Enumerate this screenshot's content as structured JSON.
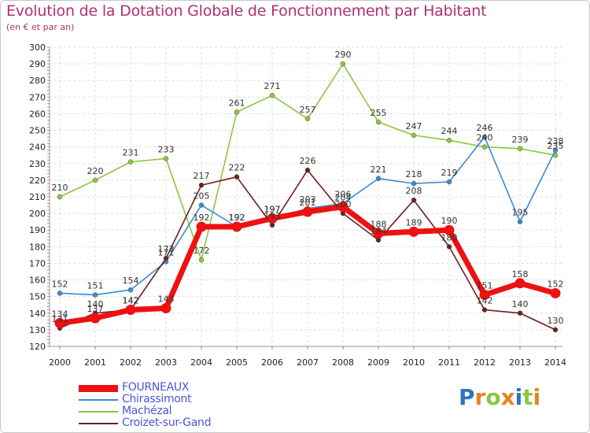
{
  "title": "Evolution de la Dotation Globale de Fonctionnement par Habitant",
  "subtitle": "(en € et par an)",
  "logo": {
    "letters": [
      "P",
      "r",
      "o",
      "x",
      "i",
      "t",
      "i"
    ],
    "colors": [
      "#2c74c0",
      "#e8821e",
      "#8cc63f",
      "#e8821e",
      "#2c74c0",
      "#8cc63f",
      "#e8821e"
    ]
  },
  "chart_data": {
    "type": "line",
    "title": "Evolution de la Dotation Globale de Fonctionnement par Habitant",
    "subtitle": "(en € et par an)",
    "xlabel": "",
    "ylabel": "",
    "x": [
      "2000",
      "2001",
      "2002",
      "2003",
      "2004",
      "2005",
      "2006",
      "2007",
      "2008",
      "2009",
      "2010",
      "2011",
      "2012",
      "2013",
      "2014"
    ],
    "ylim": [
      120,
      300
    ],
    "yticks": [
      120,
      130,
      140,
      150,
      160,
      170,
      180,
      190,
      200,
      210,
      220,
      230,
      240,
      250,
      260,
      270,
      280,
      290,
      300
    ],
    "grid": true,
    "legend_position": "bottom-left",
    "series": [
      {
        "name": "Machézal",
        "color": "#8cc63f",
        "values": [
          210,
          220,
          231,
          233,
          172,
          261,
          271,
          257,
          290,
          255,
          247,
          244,
          240,
          239,
          235
        ]
      },
      {
        "name": "Chirassimont",
        "color": "#3a8bd0",
        "values": [
          152,
          151,
          154,
          171,
          205,
          192,
          197,
          203,
          206,
          221,
          218,
          219,
          246,
          195,
          238
        ]
      },
      {
        "name": "Croizet-sur-Gand",
        "color": "#6e1e1e",
        "values": [
          131,
          140,
          142,
          173,
          217,
          222,
          193,
          226,
          200,
          184,
          208,
          180,
          142,
          140,
          130
        ]
      },
      {
        "name": "FOURNEAUX",
        "color": "#ee1111",
        "values": [
          134,
          137,
          142,
          143,
          192,
          192,
          197,
          201,
          204,
          188,
          189,
          190,
          151,
          158,
          152
        ]
      }
    ],
    "labels_shown": {
      "Machézal": [
        "210",
        "220",
        "231",
        "233",
        "172",
        "261",
        "271",
        "257",
        "290",
        "255",
        "247",
        "244",
        "240",
        "239",
        "235"
      ],
      "Chirassimont": [
        "152",
        "151",
        "154",
        "171",
        "205",
        "192",
        "197",
        "203",
        "206",
        "221",
        "218",
        "219",
        "246",
        "195",
        "238"
      ],
      "Croizet-sur-Gand": [
        "131",
        "140",
        "142",
        "173",
        "217",
        "222",
        "193",
        "226",
        "200",
        "184",
        "208",
        "180",
        "142",
        "140",
        "130"
      ],
      "FOURNEAUX": [
        "134",
        "137",
        "142",
        "143",
        "192",
        "192",
        "197",
        "201",
        "204",
        "188",
        "189",
        "190",
        "151",
        "158",
        "152"
      ]
    }
  },
  "legend": {
    "items": [
      {
        "label": "FOURNEAUX",
        "color": "#ee1111",
        "text_color": "#4a56d8",
        "thick": true
      },
      {
        "label": "Chirassimont",
        "color": "#3a8bd0",
        "text_color": "#4a56d8",
        "thick": false
      },
      {
        "label": "Machézal",
        "color": "#8cc63f",
        "text_color": "#4a56d8",
        "thick": false
      },
      {
        "label": "Croizet-sur-Gand",
        "color": "#6e1e1e",
        "text_color": "#4a56d8",
        "thick": false
      }
    ]
  }
}
